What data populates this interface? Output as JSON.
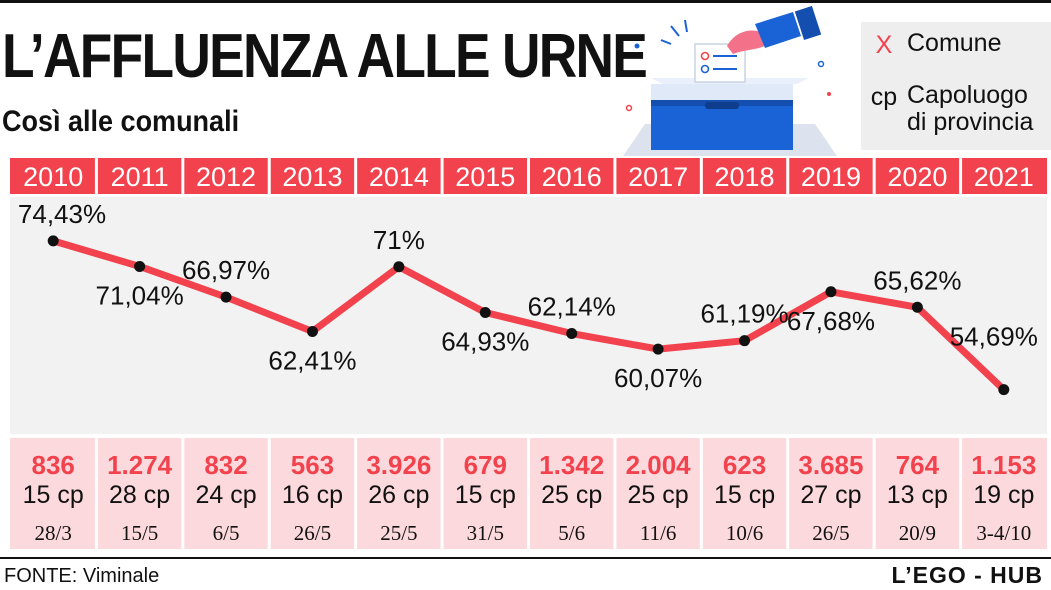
{
  "title": "L’AFFLUENZA ALLE URNE",
  "subtitle": "Così alle comunali",
  "legend": {
    "comune_symbol": "X",
    "comune_label": "Comune",
    "capoluogo_symbol": "cp",
    "capoluogo_label_line1": "Capoluogo",
    "capoluogo_label_line2": "di provincia"
  },
  "illustration_icon": "ballot-box-icon",
  "colors": {
    "accent": "#f2424d",
    "band": "#f2f2f2",
    "footer_band": "#fcd9dc",
    "legend_bg": "#eeeeee",
    "box_blue": "#1a63d6"
  },
  "chart_data": {
    "type": "line",
    "x": [
      "2010",
      "2011",
      "2012",
      "2013",
      "2014",
      "2015",
      "2016",
      "2017",
      "2018",
      "2019",
      "2020",
      "2021"
    ],
    "values": [
      74.43,
      71.04,
      66.97,
      62.41,
      71,
      64.93,
      62.14,
      60.07,
      61.19,
      67.68,
      65.62,
      54.69
    ],
    "value_labels": [
      "74,43%",
      "71,04%",
      "66,97%",
      "62,41%",
      "71%",
      "64,93%",
      "62,14%",
      "60,07%",
      "61,19%",
      "67,68%",
      "65,62%",
      "54,69%"
    ],
    "label_positions": [
      "above",
      "below",
      "above",
      "below",
      "above",
      "below",
      "above",
      "below",
      "above",
      "below",
      "above",
      "above"
    ],
    "comuni": [
      "836",
      "1.274",
      "832",
      "563",
      "3.926",
      "679",
      "1.342",
      "2.004",
      "623",
      "3.685",
      "764",
      "1.153"
    ],
    "capoluoghi": [
      "15 cp",
      "28 cp",
      "24 cp",
      "16 cp",
      "26 cp",
      "15 cp",
      "25 cp",
      "25 cp",
      "15 cp",
      "27 cp",
      "13 cp",
      "19 cp"
    ],
    "dates": [
      "28/3",
      "15/5",
      "6/5",
      "26/5",
      "25/5",
      "31/5",
      "5/6",
      "11/6",
      "10/6",
      "26/5",
      "20/9",
      "3-4/10"
    ],
    "ylim": [
      50,
      78
    ],
    "grid": false,
    "legend_position": "top-right"
  },
  "footer": {
    "source": "FONTE: Viminale",
    "brand": "L’EGO - HUB"
  }
}
